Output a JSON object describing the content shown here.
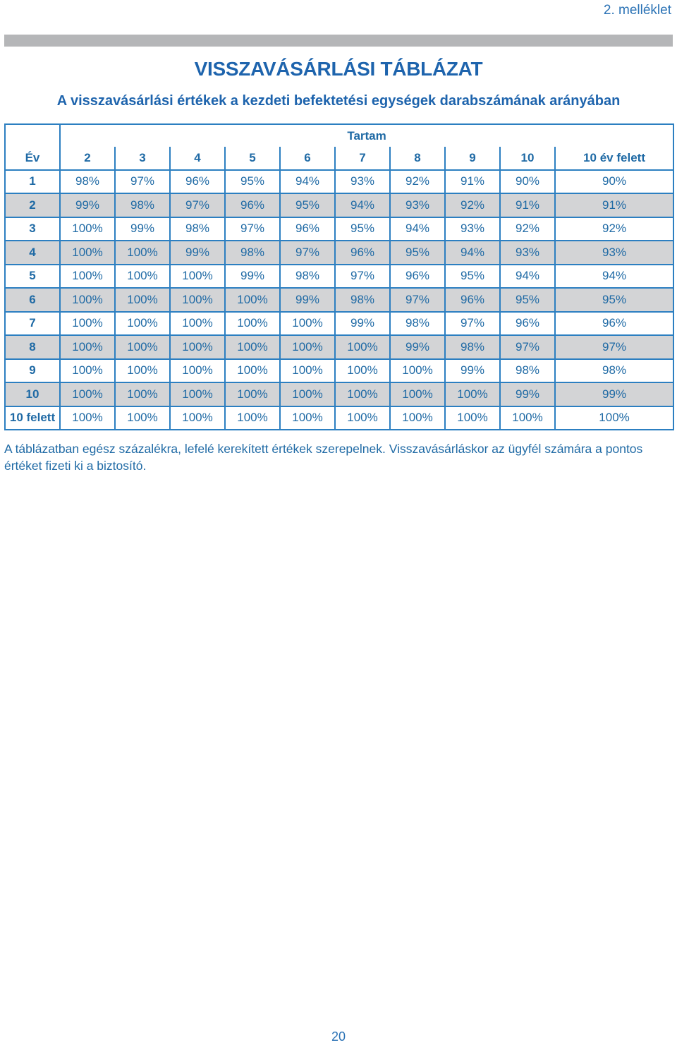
{
  "annex": "2. melléklet",
  "title": "VISSZAVÁSÁRLÁSI TÁBLÁZAT",
  "subtitle": "A visszavásárlási értékek a kezdeti befektetési egységek darabszámának arányában",
  "table": {
    "group_header": "Tartam",
    "columns": [
      "Év",
      "2",
      "3",
      "4",
      "5",
      "6",
      "7",
      "8",
      "9",
      "10",
      "10 év felett"
    ],
    "rows": [
      [
        "1",
        "98%",
        "97%",
        "96%",
        "95%",
        "94%",
        "93%",
        "92%",
        "91%",
        "90%",
        "90%"
      ],
      [
        "2",
        "99%",
        "98%",
        "97%",
        "96%",
        "95%",
        "94%",
        "93%",
        "92%",
        "91%",
        "91%"
      ],
      [
        "3",
        "100%",
        "99%",
        "98%",
        "97%",
        "96%",
        "95%",
        "94%",
        "93%",
        "92%",
        "92%"
      ],
      [
        "4",
        "100%",
        "100%",
        "99%",
        "98%",
        "97%",
        "96%",
        "95%",
        "94%",
        "93%",
        "93%"
      ],
      [
        "5",
        "100%",
        "100%",
        "100%",
        "99%",
        "98%",
        "97%",
        "96%",
        "95%",
        "94%",
        "94%"
      ],
      [
        "6",
        "100%",
        "100%",
        "100%",
        "100%",
        "99%",
        "98%",
        "97%",
        "96%",
        "95%",
        "95%"
      ],
      [
        "7",
        "100%",
        "100%",
        "100%",
        "100%",
        "100%",
        "99%",
        "98%",
        "97%",
        "96%",
        "96%"
      ],
      [
        "8",
        "100%",
        "100%",
        "100%",
        "100%",
        "100%",
        "100%",
        "99%",
        "98%",
        "97%",
        "97%"
      ],
      [
        "9",
        "100%",
        "100%",
        "100%",
        "100%",
        "100%",
        "100%",
        "100%",
        "99%",
        "98%",
        "98%"
      ],
      [
        "10",
        "100%",
        "100%",
        "100%",
        "100%",
        "100%",
        "100%",
        "100%",
        "100%",
        "99%",
        "99%"
      ],
      [
        "10 felett",
        "100%",
        "100%",
        "100%",
        "100%",
        "100%",
        "100%",
        "100%",
        "100%",
        "100%",
        "100%"
      ]
    ]
  },
  "note": "A táblázatban egész százalékra, lefelé kerekített értékek szerepelnek. Visszavásárláskor az ügyfél számára a pontos értéket fizeti ki a biztosító.",
  "page_number": "20",
  "colors": {
    "text_blue": "#1f6aa5",
    "title_blue": "#1e64ad",
    "border_blue": "#2c7fc1",
    "row_gray": "#d3d4d6",
    "bar_gray": "#b5b6b8"
  }
}
